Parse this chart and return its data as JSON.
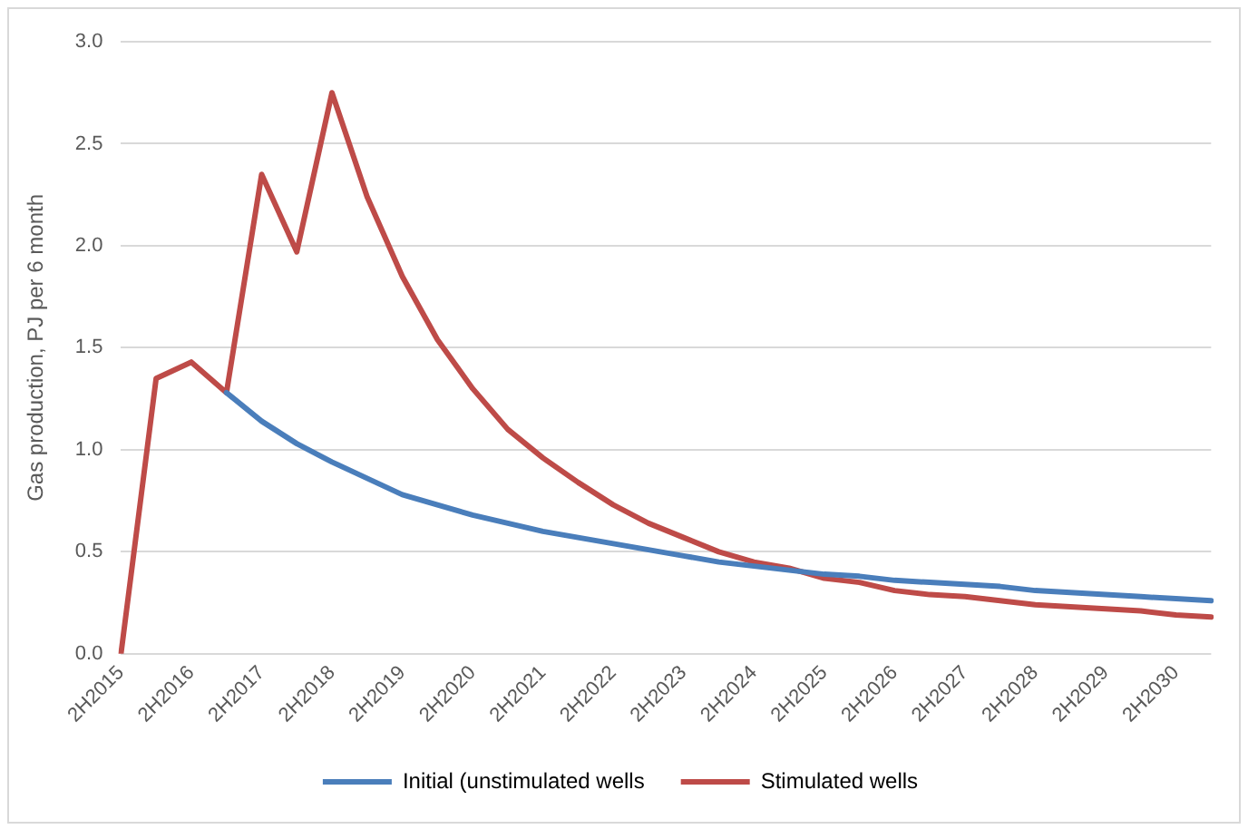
{
  "chart_data": {
    "type": "line",
    "ylabel": "Gas production, PJ per 6 month",
    "categories": [
      "2H2015",
      null,
      "2H2016",
      null,
      "2H2017",
      null,
      "2H2018",
      null,
      "2H2019",
      null,
      "2H2020",
      null,
      "2H2021",
      null,
      "2H2022",
      null,
      "2H2023",
      null,
      "2H2024",
      null,
      "2H2025",
      null,
      "2H2026",
      null,
      "2H2027",
      null,
      "2H2028",
      null,
      "2H2029",
      null,
      "2H2030",
      null
    ],
    "series": [
      {
        "name": "Initial (unstimulated wells",
        "color": "#4a7ebb",
        "values": [
          null,
          null,
          null,
          1.28,
          1.14,
          1.03,
          0.94,
          0.86,
          0.78,
          0.73,
          0.68,
          0.64,
          0.6,
          0.57,
          0.54,
          0.51,
          0.48,
          0.45,
          0.43,
          0.41,
          0.39,
          0.38,
          0.36,
          0.35,
          0.34,
          0.33,
          0.31,
          0.3,
          0.29,
          0.28,
          0.27,
          0.26
        ]
      },
      {
        "name": "Stimulated wells",
        "color": "#be4b48",
        "values": [
          0,
          1.35,
          1.43,
          1.28,
          2.35,
          1.97,
          2.75,
          2.24,
          1.85,
          1.54,
          1.3,
          1.1,
          0.96,
          0.84,
          0.73,
          0.64,
          0.57,
          0.5,
          0.45,
          0.42,
          0.37,
          0.35,
          0.31,
          0.29,
          0.28,
          0.26,
          0.24,
          0.23,
          0.22,
          0.21,
          0.19,
          0.18
        ]
      }
    ],
    "ylim": [
      0,
      3
    ],
    "yticks": [
      {
        "value": 0,
        "label": "0.0"
      },
      {
        "value": 0.5,
        "label": "0.5"
      },
      {
        "value": 1,
        "label": "1.0"
      },
      {
        "value": 1.5,
        "label": "1.5"
      },
      {
        "value": 2,
        "label": "2.0"
      },
      {
        "value": 2.5,
        "label": "2.5"
      },
      {
        "value": 3,
        "label": "3.0"
      }
    ],
    "grid": "y",
    "legend": "bottom",
    "marker": "none",
    "line_style": "solid"
  }
}
